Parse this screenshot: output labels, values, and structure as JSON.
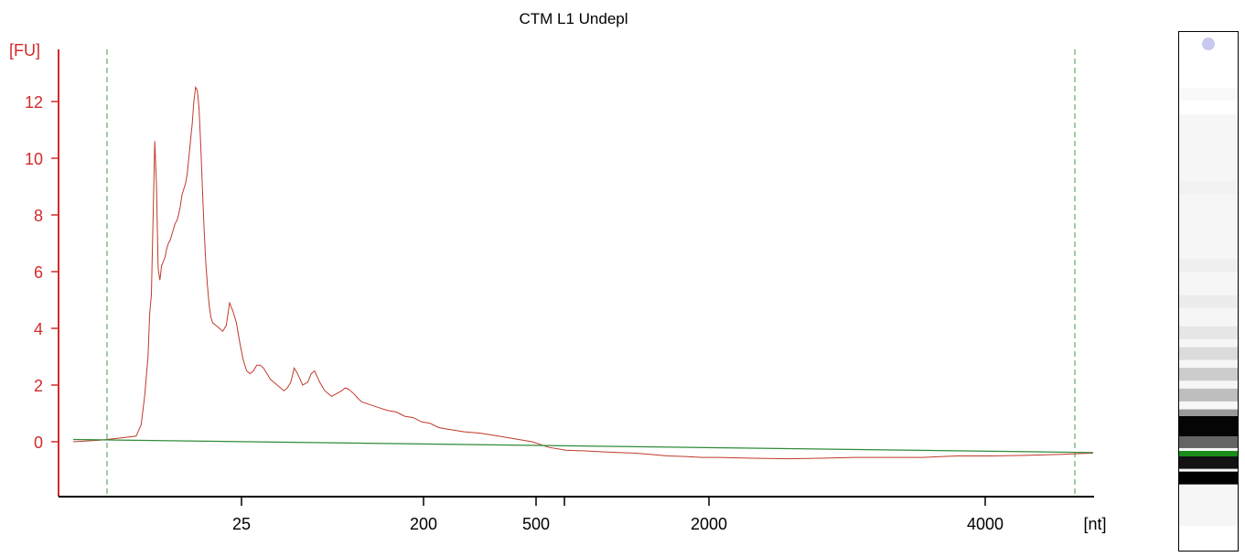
{
  "chart_data": {
    "type": "line",
    "title": "CTM L1 Undepl",
    "ylabel": "[FU]",
    "xlabel": "[nt]",
    "x_ticks": [
      "25",
      "200",
      "500",
      "2000",
      "4000"
    ],
    "y_ticks": [
      "0",
      "2",
      "4",
      "6",
      "8",
      "10",
      "12"
    ],
    "ylim": [
      -1.9,
      14
    ],
    "grid": false,
    "series": [
      {
        "color": "#c0392b",
        "x": [
          0,
          15,
          20,
          30,
          37,
          40,
          42,
          44,
          45,
          46,
          48,
          49,
          50,
          51,
          52,
          54,
          55,
          56,
          57,
          58,
          59,
          60,
          61,
          62,
          63,
          64,
          65,
          66,
          67,
          68,
          69,
          70,
          71,
          72,
          73,
          74,
          75,
          76,
          77,
          78,
          79,
          80,
          81,
          82,
          84,
          86,
          88,
          90,
          92,
          94,
          96,
          98,
          100,
          102,
          104,
          106,
          108,
          110,
          112,
          114,
          116,
          118,
          120,
          122,
          124,
          126,
          128,
          130,
          132,
          135,
          138,
          140,
          142,
          145,
          148,
          150,
          152,
          155,
          158,
          160,
          162,
          165,
          168,
          170,
          175,
          180,
          185,
          190,
          195,
          200,
          205,
          210,
          215,
          220,
          225,
          230,
          240,
          250,
          260,
          270,
          280,
          290,
          300,
          310,
          320,
          330,
          340,
          350,
          360,
          370,
          380,
          400,
          420,
          440,
          460,
          480,
          500,
          520,
          540,
          560,
          580,
          600
        ],
        "y": [
          0,
          0.05,
          0.08,
          0.15,
          0.2,
          0.6,
          1.6,
          3,
          4.5,
          5.2,
          10.6,
          9,
          6.1,
          5.7,
          6.2,
          6.5,
          6.8,
          7,
          7.1,
          7.3,
          7.5,
          7.7,
          7.8,
          8,
          8.3,
          8.7,
          8.9,
          9.1,
          9.4,
          10,
          10.6,
          11.2,
          12,
          12.5,
          12.4,
          11.8,
          10.5,
          9,
          7.5,
          6.3,
          5.5,
          4.8,
          4.4,
          4.2,
          4.1,
          4,
          3.9,
          4.1,
          4.9,
          4.6,
          4.2,
          3.5,
          2.9,
          2.5,
          2.4,
          2.5,
          2.7,
          2.7,
          2.6,
          2.4,
          2.2,
          2.1,
          2,
          1.9,
          1.8,
          1.9,
          2.1,
          2.6,
          2.4,
          2,
          2.1,
          2.4,
          2.5,
          2.1,
          1.8,
          1.7,
          1.6,
          1.7,
          1.8,
          1.9,
          1.85,
          1.7,
          1.5,
          1.4,
          1.3,
          1.2,
          1.1,
          1.05,
          0.9,
          0.85,
          0.7,
          0.65,
          0.5,
          0.45,
          0.4,
          0.35,
          0.3,
          0.2,
          0.1,
          0,
          -0.2,
          -0.3,
          -0.32,
          -0.35,
          -0.38,
          -0.4,
          -0.45,
          -0.5,
          -0.52,
          -0.55,
          -0.55,
          -0.58,
          -0.6,
          -0.58,
          -0.55,
          -0.55,
          -0.55,
          -0.5,
          -0.5,
          -0.48,
          -0.45,
          -0.4
        ]
      },
      {
        "color": "#2e8b3a",
        "x": [
          0,
          600
        ],
        "y": [
          0.08,
          -0.38
        ]
      }
    ],
    "markers": [
      "lower-marker",
      "upper-marker"
    ]
  },
  "gel": {
    "bands": [
      {
        "pos": 0.12,
        "intensity": 0.04
      },
      {
        "pos": 0.3,
        "intensity": 0.06
      },
      {
        "pos": 0.45,
        "intensity": 0.08
      },
      {
        "pos": 0.52,
        "intensity": 0.1
      },
      {
        "pos": 0.58,
        "intensity": 0.14
      },
      {
        "pos": 0.62,
        "intensity": 0.2
      },
      {
        "pos": 0.66,
        "intensity": 0.28
      },
      {
        "pos": 0.7,
        "intensity": 0.35
      },
      {
        "pos": 0.74,
        "intensity": 0.5
      },
      {
        "pos": 0.79,
        "intensity": 0.7
      },
      {
        "pos": 0.83,
        "intensity": 0.95
      },
      {
        "pos": 0.86,
        "intensity": 1.0
      }
    ],
    "marker_color": "#1a8c1a",
    "spot_color": "#c8c8f0"
  }
}
